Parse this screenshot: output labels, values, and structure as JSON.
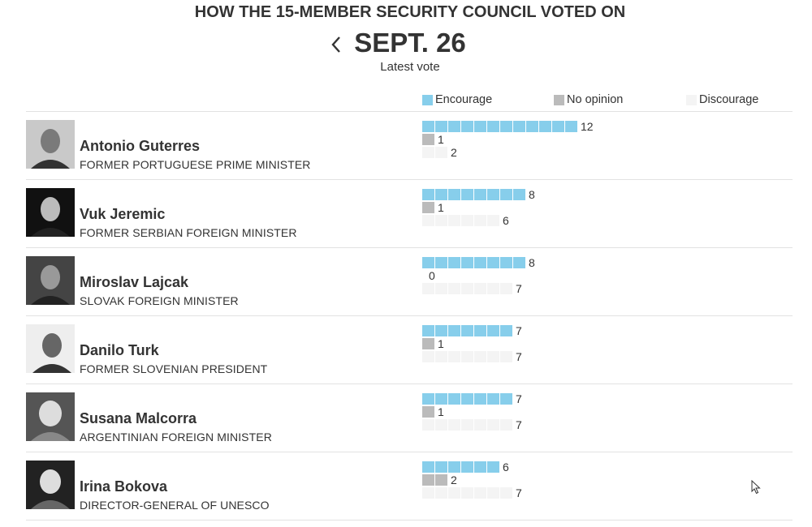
{
  "header": {
    "title": "HOW THE 15-MEMBER SECURITY COUNCIL VOTED ON",
    "date": "SEPT. 26",
    "subtitle": "Latest vote"
  },
  "legend": {
    "encourage": "Encourage",
    "no_opinion": "No opinion",
    "discourage": "Discourage"
  },
  "colors": {
    "encourage": "#87ceeb",
    "no_opinion": "#bbbbbb",
    "discourage": "#f4f4f4",
    "text": "#333333",
    "rule": "#e2e2e2"
  },
  "icons": {
    "back": "chevron-left-icon",
    "cursor": "mouse-pointer-icon"
  },
  "candidates": [
    {
      "name": "Antonio Guterres",
      "description": "FORMER PORTUGUESE PRIME MINISTER"
    },
    {
      "name": "Vuk Jeremic",
      "description": "FORMER SERBIAN FOREIGN MINISTER"
    },
    {
      "name": "Miroslav Lajcak",
      "description": "SLOVAK FOREIGN MINISTER"
    },
    {
      "name": "Danilo Turk",
      "description": "FORMER SLOVENIAN PRESIDENT"
    },
    {
      "name": "Susana Malcorra",
      "description": "ARGENTINIAN FOREIGN MINISTER"
    },
    {
      "name": "Irina Bokova",
      "description": "DIRECTOR-GENERAL OF UNESCO"
    }
  ],
  "chart_data": {
    "type": "bar",
    "categories": [
      "Antonio Guterres",
      "Vuk Jeremic",
      "Miroslav Lajcak",
      "Danilo Turk",
      "Susana Malcorra",
      "Irina Bokova"
    ],
    "series": [
      {
        "name": "Encourage",
        "values": [
          12,
          8,
          8,
          7,
          7,
          6
        ]
      },
      {
        "name": "No opinion",
        "values": [
          1,
          1,
          0,
          1,
          1,
          2
        ]
      },
      {
        "name": "Discourage",
        "values": [
          2,
          6,
          7,
          7,
          7,
          7
        ]
      }
    ],
    "unit_total": 15
  }
}
